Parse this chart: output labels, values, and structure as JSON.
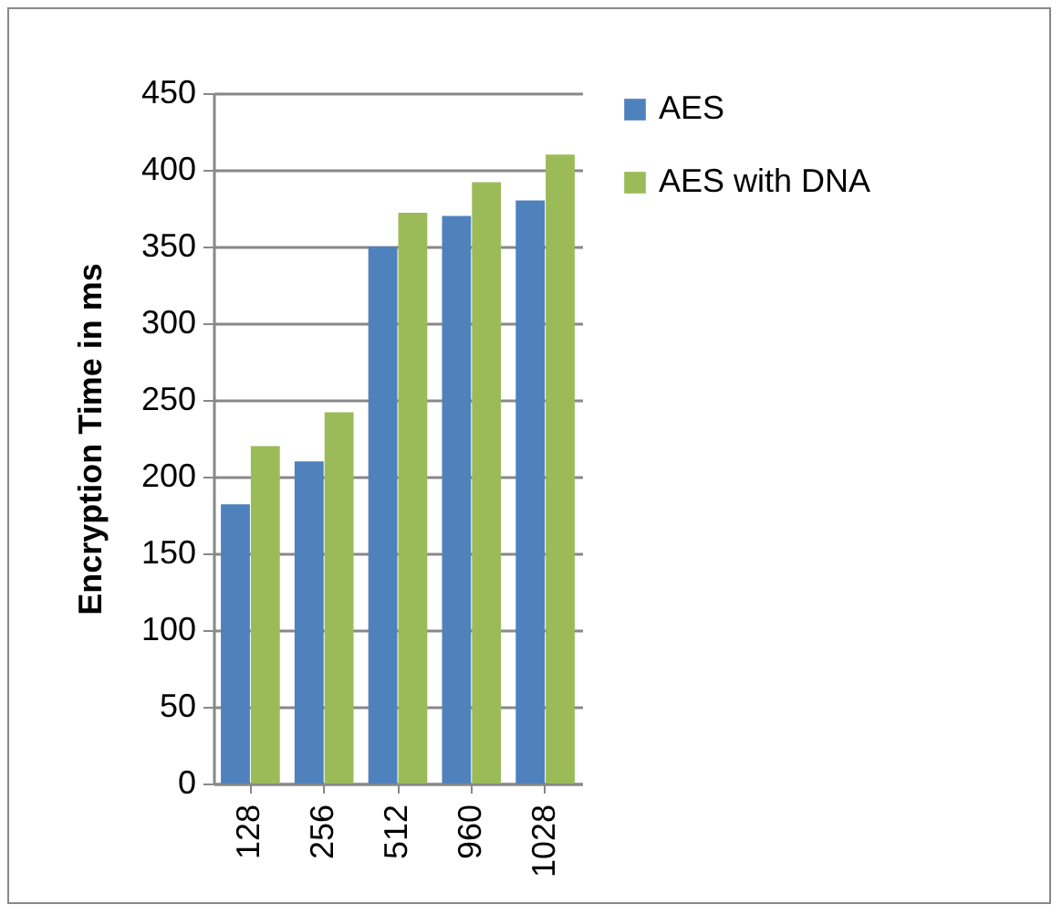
{
  "chart_data": {
    "type": "bar",
    "ylabel": "Encryption Time in ms",
    "categories": [
      "128",
      "256",
      "512",
      "960",
      "1028"
    ],
    "series": [
      {
        "name": "AES",
        "color": "#4f81bd",
        "values": [
          182,
          210,
          350,
          370,
          380
        ]
      },
      {
        "name": "AES with DNA",
        "color": "#9bbb59",
        "values": [
          220,
          242,
          372,
          392,
          410
        ]
      }
    ],
    "ylim": [
      0,
      450
    ],
    "yticks": [
      0,
      50,
      100,
      150,
      200,
      250,
      300,
      350,
      400,
      450
    ],
    "grid": "y",
    "legend": "right"
  }
}
